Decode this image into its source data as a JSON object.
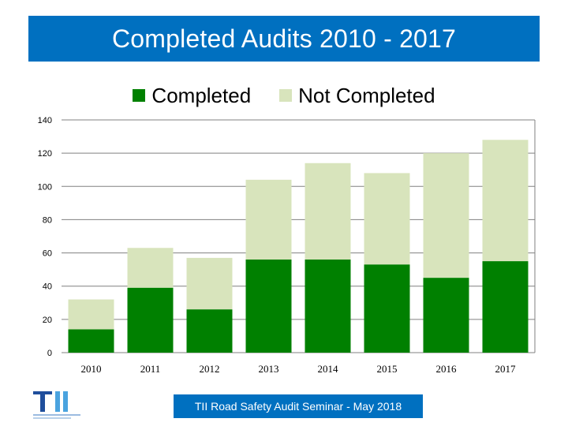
{
  "colors": {
    "title_bar": "#0070c0",
    "completed": "#008000",
    "not_completed": "#d8e4bc",
    "axis": "#808080",
    "footer": "#0070c0"
  },
  "chart_data": {
    "type": "bar",
    "stacked": true,
    "title": "Completed Audits 2010 - 2017",
    "xlabel": "",
    "ylabel": "",
    "categories": [
      "2010",
      "2011",
      "2012",
      "2013",
      "2014",
      "2015",
      "2016",
      "2017"
    ],
    "series": [
      {
        "name": "Completed",
        "values": [
          14,
          39,
          26,
          56,
          56,
          53,
          45,
          55
        ]
      },
      {
        "name": "Not Completed",
        "values": [
          18,
          24,
          31,
          48,
          58,
          55,
          75,
          73
        ]
      }
    ],
    "ylim": [
      0,
      140
    ],
    "yticks": [
      "0",
      "20",
      "40",
      "60",
      "80",
      "100",
      "120",
      "140"
    ],
    "grid": true,
    "legend_position": "top"
  },
  "footer": {
    "text": "TII Road Safety Audit Seminar - May 2018"
  },
  "logo": {
    "icon": "tii-logo-icon",
    "text": "TII"
  }
}
